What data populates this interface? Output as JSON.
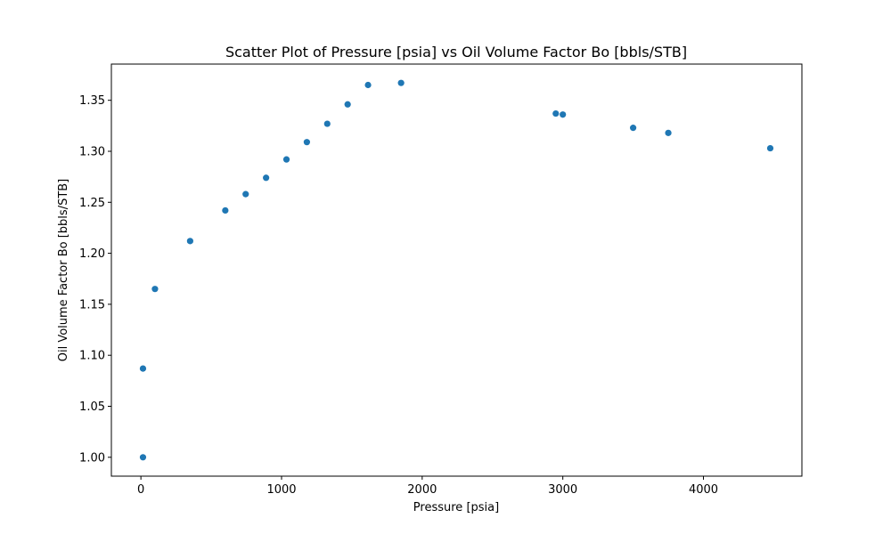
{
  "chart_data": {
    "type": "scatter",
    "title": "Scatter Plot of Pressure [psia] vs Oil Volume Factor Bo [bbls/STB]",
    "xlabel": "Pressure [psia]",
    "ylabel": "Oil Volume Factor Bo [bbls/STB]",
    "xlim": [
      -210,
      4700
    ],
    "ylim": [
      0.9815,
      1.3855
    ],
    "xticks": [
      0,
      1000,
      2000,
      3000,
      4000
    ],
    "xtick_labels": [
      "0",
      "1000",
      "2000",
      "3000",
      "4000"
    ],
    "yticks": [
      1.0,
      1.05,
      1.1,
      1.15,
      1.2,
      1.25,
      1.3,
      1.35
    ],
    "ytick_labels": [
      "1.00",
      "1.05",
      "1.10",
      "1.15",
      "1.20",
      "1.25",
      "1.30",
      "1.35"
    ],
    "grid": false,
    "marker_color": "#1f77b4",
    "points": [
      {
        "x": 14.7,
        "y": 1.0
      },
      {
        "x": 14.7,
        "y": 1.087
      },
      {
        "x": 100,
        "y": 1.165
      },
      {
        "x": 350,
        "y": 1.212
      },
      {
        "x": 600,
        "y": 1.242
      },
      {
        "x": 745,
        "y": 1.258
      },
      {
        "x": 890,
        "y": 1.274
      },
      {
        "x": 1035,
        "y": 1.292
      },
      {
        "x": 1180,
        "y": 1.309
      },
      {
        "x": 1325,
        "y": 1.327
      },
      {
        "x": 1470,
        "y": 1.346
      },
      {
        "x": 1615,
        "y": 1.365
      },
      {
        "x": 1850,
        "y": 1.367
      },
      {
        "x": 2950,
        "y": 1.337
      },
      {
        "x": 3000,
        "y": 1.336
      },
      {
        "x": 3500,
        "y": 1.323
      },
      {
        "x": 3750,
        "y": 1.318
      },
      {
        "x": 4475,
        "y": 1.303
      }
    ]
  }
}
